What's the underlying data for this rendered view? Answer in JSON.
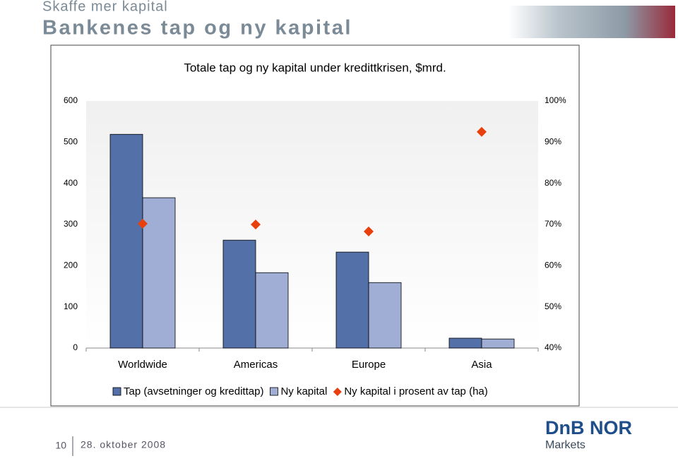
{
  "slide": {
    "kicker": "Skaffe mer kapital",
    "title": "Bankenes tap og ny kapital",
    "page_number": "10",
    "date": "28. oktober 2008",
    "logo_name": "DnB NOR",
    "logo_sub": "Markets"
  },
  "chart_data": {
    "type": "bar",
    "title": "Totale tap og ny kapital under kredittkrisen, $mrd.",
    "categories": [
      "Worldwide",
      "Americas",
      "Europe",
      "Asia"
    ],
    "series": [
      {
        "name": "Tap (avsetninger og kredittap)",
        "type": "bar",
        "color": "#5470a8",
        "values": [
          519,
          262,
          233,
          24
        ]
      },
      {
        "name": "Ny kapital",
        "type": "bar",
        "color": "#a0aed6",
        "values": [
          365,
          183,
          159,
          22
        ]
      },
      {
        "name": "Ny kapital i prosent av tap (ha)",
        "type": "marker",
        "axis": "y2",
        "color": "#e8400c",
        "values": [
          70.2,
          70,
          68.3,
          92.5
        ]
      }
    ],
    "ylim": [
      0,
      600
    ],
    "yticks": [
      0,
      100,
      200,
      300,
      400,
      500,
      600
    ],
    "y2lim": [
      40,
      100
    ],
    "y2ticks": [
      {
        "value": 40,
        "label": "40%"
      },
      {
        "value": 50,
        "label": "50%"
      },
      {
        "value": 60,
        "label": "60%"
      },
      {
        "value": 70,
        "label": "70%"
      },
      {
        "value": 80,
        "label": "80%"
      },
      {
        "value": 90,
        "label": "90%"
      },
      {
        "value": 100,
        "label": "100%"
      }
    ],
    "legend": "bottom"
  }
}
